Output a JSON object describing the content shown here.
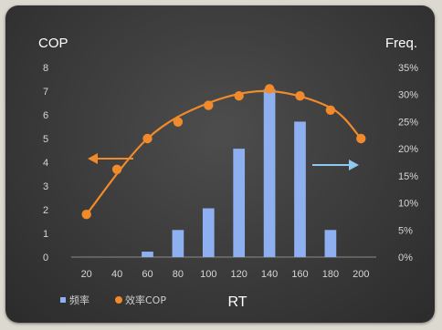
{
  "chart_data": {
    "type": "bar",
    "title": "",
    "xlabel": "RT",
    "ylabel": "COP",
    "y2label": "Freq.",
    "x": [
      20,
      40,
      60,
      80,
      100,
      120,
      140,
      160,
      180,
      200
    ],
    "x_tick_labels": [
      "20",
      "40",
      "60",
      "80",
      "100",
      "120",
      "140",
      "160",
      "180",
      "200"
    ],
    "ylim": [
      0,
      8
    ],
    "y_ticks": [
      "0",
      "1",
      "2",
      "3",
      "4",
      "5",
      "6",
      "7",
      "8"
    ],
    "y2lim": [
      0,
      35
    ],
    "y2_ticks": [
      "0%",
      "5%",
      "10%",
      "15%",
      "20%",
      "25%",
      "30%",
      "35%"
    ],
    "grid": false,
    "legend_position": "bottom-left",
    "series": [
      {
        "name": "频率",
        "type": "bar",
        "axis": "right",
        "color": "#8fb0f0",
        "values": [
          0,
          0,
          1,
          5,
          9,
          20,
          31,
          25,
          5,
          0
        ]
      },
      {
        "name": "效率COP",
        "type": "scatter",
        "axis": "left",
        "color": "#f08a2a",
        "values": [
          1.8,
          3.7,
          5.0,
          5.7,
          6.4,
          6.8,
          7.1,
          6.8,
          6.2,
          5.0
        ]
      }
    ],
    "trend_curve": {
      "axis": "left",
      "color": "#f08a2a",
      "points": [
        [
          20,
          1.8
        ],
        [
          60,
          5.0
        ],
        [
          100,
          6.5
        ],
        [
          140,
          7.0
        ],
        [
          180,
          6.3
        ],
        [
          200,
          5.0
        ]
      ]
    },
    "annotations": [
      {
        "kind": "arrow",
        "points_to": "left axis (COP)",
        "color": "#f08a2a"
      },
      {
        "kind": "arrow",
        "points_to": "right axis (Freq.)",
        "color": "#8fc9ee"
      }
    ]
  }
}
